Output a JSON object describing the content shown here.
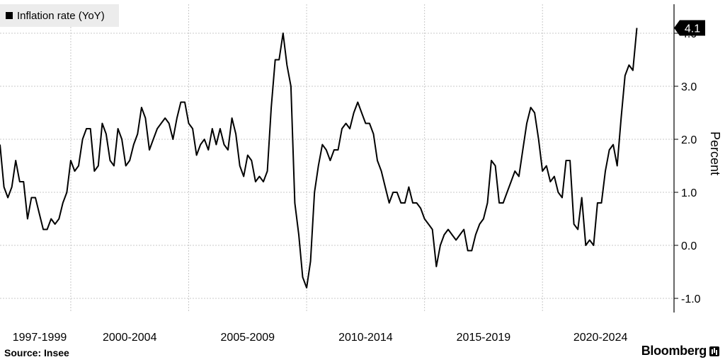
{
  "chart_data": {
    "type": "line",
    "legend": "Inflation rate (YoY)",
    "ylabel": "Percent",
    "ylim": [
      -1.3,
      4.5
    ],
    "yticks": [
      "4.0",
      "3.0",
      "2.0",
      "1.0",
      "0.0",
      "-1.0"
    ],
    "ytick_values": [
      4.0,
      3.0,
      2.0,
      1.0,
      0.0,
      -1.0
    ],
    "xlim": [
      "1997-01",
      "2024-12"
    ],
    "xtick_labels": [
      "1997-1999",
      "2000-2004",
      "2005-2009",
      "2010-2014",
      "2015-2019",
      "2020-2024"
    ],
    "grid": true,
    "last_value_label": "4.1",
    "series": [
      {
        "color": "#000000",
        "points": [
          [
            "1997-01",
            1.9
          ],
          [
            "1997-03",
            1.1
          ],
          [
            "1997-05",
            0.9
          ],
          [
            "1997-07",
            1.1
          ],
          [
            "1997-09",
            1.6
          ],
          [
            "1997-11",
            1.2
          ],
          [
            "1998-01",
            1.2
          ],
          [
            "1998-03",
            0.5
          ],
          [
            "1998-05",
            0.9
          ],
          [
            "1998-07",
            0.9
          ],
          [
            "1998-09",
            0.6
          ],
          [
            "1998-11",
            0.3
          ],
          [
            "1999-01",
            0.3
          ],
          [
            "1999-03",
            0.5
          ],
          [
            "1999-05",
            0.4
          ],
          [
            "1999-07",
            0.5
          ],
          [
            "1999-09",
            0.8
          ],
          [
            "1999-11",
            1.0
          ],
          [
            "2000-01",
            1.6
          ],
          [
            "2000-03",
            1.4
          ],
          [
            "2000-05",
            1.5
          ],
          [
            "2000-07",
            2.0
          ],
          [
            "2000-09",
            2.2
          ],
          [
            "2000-11",
            2.2
          ],
          [
            "2001-01",
            1.4
          ],
          [
            "2001-03",
            1.5
          ],
          [
            "2001-05",
            2.3
          ],
          [
            "2001-07",
            2.1
          ],
          [
            "2001-09",
            1.6
          ],
          [
            "2001-11",
            1.5
          ],
          [
            "2002-01",
            2.2
          ],
          [
            "2002-03",
            2.0
          ],
          [
            "2002-05",
            1.5
          ],
          [
            "2002-07",
            1.6
          ],
          [
            "2002-09",
            1.9
          ],
          [
            "2002-11",
            2.1
          ],
          [
            "2003-01",
            2.6
          ],
          [
            "2003-03",
            2.4
          ],
          [
            "2003-05",
            1.8
          ],
          [
            "2003-07",
            2.0
          ],
          [
            "2003-09",
            2.2
          ],
          [
            "2003-11",
            2.3
          ],
          [
            "2004-01",
            2.4
          ],
          [
            "2004-03",
            2.3
          ],
          [
            "2004-05",
            2.0
          ],
          [
            "2004-07",
            2.4
          ],
          [
            "2004-09",
            2.7
          ],
          [
            "2004-11",
            2.7
          ],
          [
            "2005-01",
            2.3
          ],
          [
            "2005-03",
            2.2
          ],
          [
            "2005-05",
            1.7
          ],
          [
            "2005-07",
            1.9
          ],
          [
            "2005-09",
            2.0
          ],
          [
            "2005-11",
            1.8
          ],
          [
            "2006-01",
            2.2
          ],
          [
            "2006-03",
            1.9
          ],
          [
            "2006-05",
            2.2
          ],
          [
            "2006-07",
            1.9
          ],
          [
            "2006-09",
            1.8
          ],
          [
            "2006-11",
            2.4
          ],
          [
            "2007-01",
            2.1
          ],
          [
            "2007-03",
            1.5
          ],
          [
            "2007-05",
            1.3
          ],
          [
            "2007-07",
            1.7
          ],
          [
            "2007-09",
            1.6
          ],
          [
            "2007-11",
            1.2
          ],
          [
            "2008-01",
            1.3
          ],
          [
            "2008-03",
            1.2
          ],
          [
            "2008-05",
            1.4
          ],
          [
            "2008-07",
            2.6
          ],
          [
            "2008-09",
            3.5
          ],
          [
            "2008-11",
            3.5
          ],
          [
            "2009-01",
            4.0
          ],
          [
            "2009-03",
            3.4
          ],
          [
            "2009-05",
            3.0
          ],
          [
            "2009-07",
            0.8
          ],
          [
            "2009-09",
            0.2
          ],
          [
            "2009-11",
            -0.6
          ],
          [
            "2010-01",
            -0.8
          ],
          [
            "2010-03",
            -0.3
          ],
          [
            "2010-05",
            1.0
          ],
          [
            "2010-07",
            1.5
          ],
          [
            "2010-09",
            1.9
          ],
          [
            "2010-11",
            1.8
          ],
          [
            "2011-01",
            1.6
          ],
          [
            "2011-03",
            1.8
          ],
          [
            "2011-05",
            1.8
          ],
          [
            "2011-07",
            2.2
          ],
          [
            "2011-09",
            2.3
          ],
          [
            "2011-11",
            2.2
          ],
          [
            "2012-01",
            2.5
          ],
          [
            "2012-03",
            2.7
          ],
          [
            "2012-05",
            2.5
          ],
          [
            "2012-07",
            2.3
          ],
          [
            "2012-09",
            2.3
          ],
          [
            "2012-11",
            2.1
          ],
          [
            "2013-01",
            1.6
          ],
          [
            "2013-03",
            1.4
          ],
          [
            "2013-05",
            1.1
          ],
          [
            "2013-07",
            0.8
          ],
          [
            "2013-09",
            1.0
          ],
          [
            "2013-11",
            1.0
          ],
          [
            "2014-01",
            0.8
          ],
          [
            "2014-03",
            0.8
          ],
          [
            "2014-05",
            1.1
          ],
          [
            "2014-07",
            0.8
          ],
          [
            "2014-09",
            0.8
          ],
          [
            "2014-11",
            0.7
          ],
          [
            "2015-01",
            0.5
          ],
          [
            "2015-03",
            0.4
          ],
          [
            "2015-05",
            0.3
          ],
          [
            "2015-07",
            -0.4
          ],
          [
            "2015-09",
            0.0
          ],
          [
            "2015-11",
            0.2
          ],
          [
            "2016-01",
            0.3
          ],
          [
            "2016-03",
            0.2
          ],
          [
            "2016-05",
            0.1
          ],
          [
            "2016-07",
            0.2
          ],
          [
            "2016-09",
            0.3
          ],
          [
            "2016-11",
            -0.1
          ],
          [
            "2017-01",
            -0.1
          ],
          [
            "2017-03",
            0.2
          ],
          [
            "2017-05",
            0.4
          ],
          [
            "2017-07",
            0.5
          ],
          [
            "2017-09",
            0.8
          ],
          [
            "2017-11",
            1.6
          ],
          [
            "2018-01",
            1.5
          ],
          [
            "2018-03",
            0.8
          ],
          [
            "2018-05",
            0.8
          ],
          [
            "2018-07",
            1.0
          ],
          [
            "2018-09",
            1.2
          ],
          [
            "2018-11",
            1.4
          ],
          [
            "2019-01",
            1.3
          ],
          [
            "2019-03",
            1.8
          ],
          [
            "2019-05",
            2.3
          ],
          [
            "2019-07",
            2.6
          ],
          [
            "2019-09",
            2.5
          ],
          [
            "2019-11",
            2.0
          ],
          [
            "2020-01",
            1.4
          ],
          [
            "2020-03",
            1.5
          ],
          [
            "2020-05",
            1.2
          ],
          [
            "2020-07",
            1.3
          ],
          [
            "2020-09",
            1.0
          ],
          [
            "2020-11",
            0.9
          ],
          [
            "2021-01",
            1.6
          ],
          [
            "2021-03",
            1.6
          ],
          [
            "2021-05",
            0.4
          ],
          [
            "2021-07",
            0.3
          ],
          [
            "2021-09",
            0.9
          ],
          [
            "2021-11",
            0.0
          ],
          [
            "2022-01",
            0.1
          ],
          [
            "2022-03",
            0.0
          ],
          [
            "2022-05",
            0.8
          ],
          [
            "2022-07",
            0.8
          ],
          [
            "2022-09",
            1.4
          ],
          [
            "2022-11",
            1.8
          ],
          [
            "2023-01",
            1.9
          ],
          [
            "2023-03",
            1.5
          ],
          [
            "2023-05",
            2.4
          ],
          [
            "2023-07",
            3.2
          ],
          [
            "2023-09",
            3.4
          ],
          [
            "2023-11",
            3.3
          ],
          [
            "2024-01",
            4.1
          ]
        ]
      }
    ]
  },
  "source": "Source: Insee",
  "brand": "Bloomberg"
}
